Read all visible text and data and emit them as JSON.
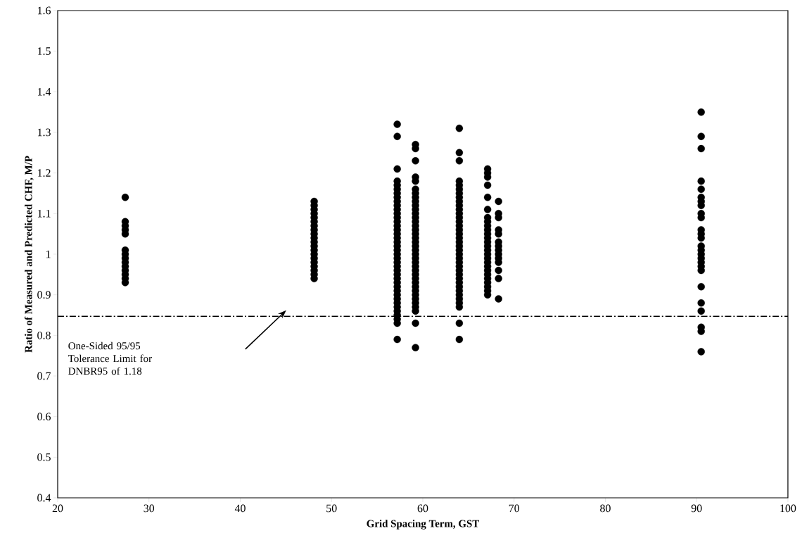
{
  "chart_data": {
    "type": "scatter",
    "xlabel": "Grid Spacing Term, GST",
    "ylabel": "Ratio of Measured and Predicted CHF, M/P",
    "xlim": [
      20,
      100
    ],
    "xticks": [
      20,
      30,
      40,
      50,
      60,
      70,
      80,
      90,
      100
    ],
    "ylim": [
      0.4,
      1.6
    ],
    "yticks": [
      0.4,
      0.5,
      0.6,
      0.7,
      0.8,
      0.9,
      1,
      1.1,
      1.2,
      1.3,
      1.4,
      1.5,
      1.6
    ],
    "grid": false,
    "marker": "circle",
    "ref_lines": [
      {
        "axis": "y",
        "value": 0.847,
        "line_style": "dashdot",
        "color": "#000000"
      }
    ],
    "annotations": [
      "One-Sided 95/95 Tolerance Limit for DNBR95 of 1.18"
    ],
    "series": [
      {
        "color": "#000000",
        "x": [
          27.4,
          27.4,
          27.4,
          27.4,
          27.4,
          27.4,
          27.4,
          27.4,
          27.4,
          27.4,
          27.4,
          27.4,
          27.4,
          27.4
        ],
        "values": [
          1.14,
          1.08,
          1.07,
          1.06,
          1.05,
          1.01,
          1.0,
          0.99,
          0.98,
          0.97,
          0.96,
          0.95,
          0.94,
          0.93
        ]
      },
      {
        "color": "#000000",
        "x": [
          48.1,
          48.1,
          48.1,
          48.1,
          48.1,
          48.1,
          48.1,
          48.1,
          48.1,
          48.1,
          48.1,
          48.1,
          48.1,
          48.1,
          48.1,
          48.1,
          48.1,
          48.1,
          48.1,
          48.1
        ],
        "values": [
          1.13,
          1.12,
          1.11,
          1.1,
          1.09,
          1.08,
          1.07,
          1.06,
          1.05,
          1.04,
          1.03,
          1.02,
          1.01,
          1.0,
          0.99,
          0.98,
          0.97,
          0.96,
          0.95,
          0.94
        ]
      },
      {
        "color": "#000000",
        "x": [
          57.2,
          57.2,
          57.2,
          57.2,
          57.2,
          57.2,
          57.2,
          57.2,
          57.2,
          57.2,
          57.2,
          57.2,
          57.2,
          57.2,
          57.2,
          57.2,
          57.2,
          57.2,
          57.2,
          57.2,
          57.2,
          57.2,
          57.2,
          57.2,
          57.2,
          57.2,
          57.2,
          57.2,
          57.2,
          57.2,
          57.2,
          57.2,
          57.2,
          57.2,
          57.2,
          57.2,
          57.2,
          57.2,
          57.2,
          57.2
        ],
        "values": [
          1.32,
          1.29,
          1.21,
          1.18,
          1.17,
          1.16,
          1.15,
          1.14,
          1.13,
          1.12,
          1.11,
          1.1,
          1.09,
          1.08,
          1.07,
          1.06,
          1.05,
          1.04,
          1.03,
          1.02,
          1.01,
          1.0,
          0.99,
          0.98,
          0.97,
          0.96,
          0.95,
          0.94,
          0.93,
          0.92,
          0.91,
          0.9,
          0.89,
          0.88,
          0.87,
          0.86,
          0.85,
          0.84,
          0.83,
          0.79
        ]
      },
      {
        "color": "#000000",
        "x": [
          59.2,
          59.2,
          59.2,
          59.2,
          59.2,
          59.2,
          59.2,
          59.2,
          59.2,
          59.2,
          59.2,
          59.2,
          59.2,
          59.2,
          59.2,
          59.2,
          59.2,
          59.2,
          59.2,
          59.2,
          59.2,
          59.2,
          59.2,
          59.2,
          59.2,
          59.2,
          59.2,
          59.2,
          59.2,
          59.2,
          59.2,
          59.2,
          59.2,
          59.2,
          59.2,
          59.2,
          59.2,
          59.2
        ],
        "values": [
          1.27,
          1.26,
          1.23,
          1.19,
          1.18,
          1.16,
          1.15,
          1.14,
          1.13,
          1.12,
          1.11,
          1.1,
          1.09,
          1.08,
          1.07,
          1.06,
          1.05,
          1.04,
          1.03,
          1.02,
          1.01,
          1.0,
          0.99,
          0.98,
          0.97,
          0.96,
          0.95,
          0.94,
          0.93,
          0.92,
          0.91,
          0.9,
          0.89,
          0.88,
          0.87,
          0.86,
          0.83,
          0.77
        ]
      },
      {
        "color": "#000000",
        "x": [
          64.0,
          64.0,
          64.0,
          64.0,
          64.0,
          64.0,
          64.0,
          64.0,
          64.0,
          64.0,
          64.0,
          64.0,
          64.0,
          64.0,
          64.0,
          64.0,
          64.0,
          64.0,
          64.0,
          64.0,
          64.0,
          64.0,
          64.0,
          64.0,
          64.0,
          64.0,
          64.0,
          64.0,
          64.0,
          64.0,
          64.0,
          64.0,
          64.0,
          64.0,
          64.0,
          64.0,
          64.0
        ],
        "values": [
          1.31,
          1.25,
          1.23,
          1.18,
          1.17,
          1.16,
          1.15,
          1.14,
          1.13,
          1.12,
          1.11,
          1.1,
          1.09,
          1.08,
          1.07,
          1.06,
          1.05,
          1.04,
          1.03,
          1.02,
          1.01,
          1.0,
          0.99,
          0.98,
          0.97,
          0.96,
          0.95,
          0.94,
          0.93,
          0.92,
          0.91,
          0.9,
          0.89,
          0.88,
          0.87,
          0.83,
          0.79
        ]
      },
      {
        "color": "#000000",
        "x": [
          67.1,
          67.1,
          67.1,
          67.1,
          67.1,
          67.1,
          67.1,
          67.1,
          67.1,
          67.1,
          67.1,
          67.1,
          67.1,
          67.1,
          67.1,
          67.1,
          67.1,
          67.1,
          67.1,
          67.1,
          67.1,
          67.1,
          67.1,
          67.1,
          67.1,
          67.1
        ],
        "values": [
          1.21,
          1.2,
          1.19,
          1.17,
          1.14,
          1.11,
          1.09,
          1.08,
          1.07,
          1.06,
          1.05,
          1.04,
          1.03,
          1.02,
          1.01,
          1.0,
          0.99,
          0.98,
          0.97,
          0.96,
          0.95,
          0.94,
          0.93,
          0.92,
          0.91,
          0.9
        ]
      },
      {
        "color": "#000000",
        "x": [
          68.3,
          68.3,
          68.3,
          68.3,
          68.3,
          68.3,
          68.3,
          68.3,
          68.3,
          68.3,
          68.3,
          68.3,
          68.3,
          68.3
        ],
        "values": [
          1.13,
          1.1,
          1.09,
          1.06,
          1.05,
          1.03,
          1.02,
          1.01,
          1.0,
          0.99,
          0.98,
          0.96,
          0.94,
          0.89
        ]
      },
      {
        "color": "#000000",
        "x": [
          90.5,
          90.5,
          90.5,
          90.5,
          90.5,
          90.5,
          90.5,
          90.5,
          90.5,
          90.5,
          90.5,
          90.5,
          90.5,
          90.5,
          90.5,
          90.5,
          90.5,
          90.5,
          90.5,
          90.5,
          90.5,
          90.5,
          90.5,
          90.5,
          90.5,
          90.5
        ],
        "values": [
          1.35,
          1.29,
          1.26,
          1.18,
          1.16,
          1.14,
          1.13,
          1.12,
          1.1,
          1.09,
          1.06,
          1.05,
          1.04,
          1.02,
          1.01,
          1.0,
          0.99,
          0.98,
          0.97,
          0.96,
          0.92,
          0.88,
          0.86,
          0.82,
          0.81,
          0.76
        ]
      }
    ]
  }
}
